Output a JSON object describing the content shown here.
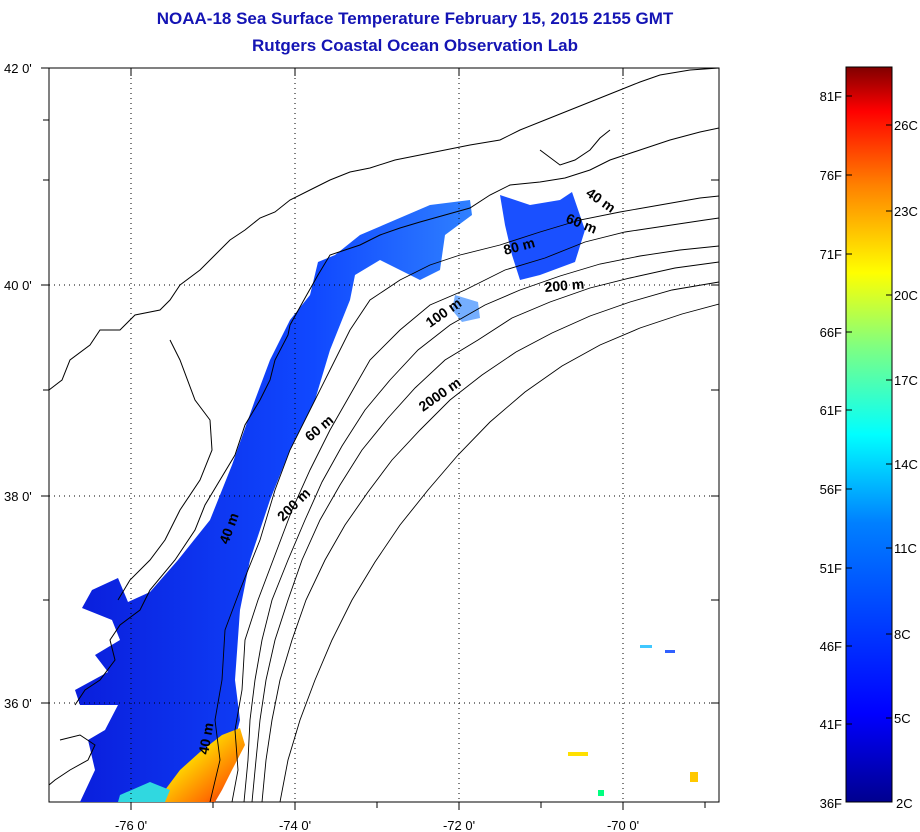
{
  "title": {
    "line1": "NOAA-18 Sea Surface Temperature February 15, 2015 2155 GMT",
    "line2": "Rutgers Coastal Ocean Observation Lab"
  },
  "map": {
    "latitude_labels": [
      "42 0'",
      "40 0'",
      "38 0'",
      "36 0'"
    ],
    "longitude_labels": [
      "-76 0'",
      "-74 0'",
      "-72 0'",
      "-70 0'"
    ],
    "contour_labels": [
      "40 m",
      "60 m",
      "80 m",
      "200 m",
      "100 m",
      "2000 m",
      "60 m",
      "200 m",
      "40 m",
      "40 m"
    ],
    "grid": "dotted",
    "land_color": "#ffffff",
    "coastline_color": "#000000"
  },
  "colorbar": {
    "fahrenheit_labels": [
      "81F",
      "76F",
      "71F",
      "66F",
      "61F",
      "56F",
      "51F",
      "46F",
      "41F",
      "36F"
    ],
    "celsius_labels": [
      "26C",
      "23C",
      "20C",
      "17C",
      "14C",
      "11C",
      "8C",
      "5C",
      "2C"
    ],
    "colors_bottom_to_top": [
      "#00008f",
      "#0000ff",
      "#0080ff",
      "#00ffff",
      "#80ff80",
      "#ffff00",
      "#ff8000",
      "#ff0000",
      "#800000"
    ]
  }
}
